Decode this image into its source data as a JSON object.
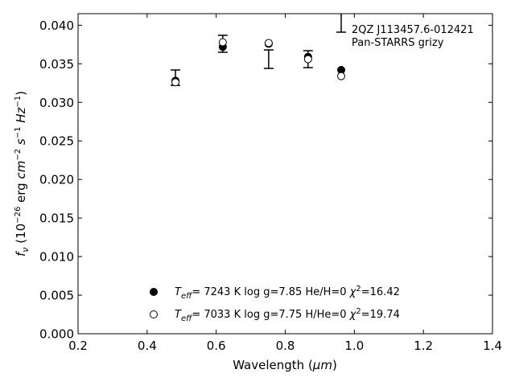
{
  "chart_data": {
    "type": "scatter",
    "annotation_lines": [
      "2QZ J113457.6-012421",
      "Pan-STARRS grizy"
    ],
    "xlabel_prefix": "Wavelength (",
    "xlabel_unit": "μm",
    "xlabel_suffix": ")",
    "ylabel": "f_ν (10^-26 erg cm^-2 s^-1 Hz^-1)",
    "xlim": [
      0.2,
      1.4
    ],
    "ylim": [
      0.0,
      0.0415
    ],
    "xticks": [
      0.2,
      0.4,
      0.6,
      0.8,
      1.0,
      1.2,
      1.4
    ],
    "xtick_labels": [
      "0.2",
      "0.4",
      "0.6",
      "0.8",
      "1.0",
      "1.2",
      "1.4"
    ],
    "yticks": [
      0.0,
      0.005,
      0.01,
      0.015,
      0.02,
      0.025,
      0.03,
      0.035,
      0.04
    ],
    "ytick_labels": [
      "0.000",
      "0.005",
      "0.010",
      "0.015",
      "0.020",
      "0.025",
      "0.030",
      "0.035",
      "0.040"
    ],
    "grid": false,
    "legend_placement": "lower-center",
    "observed": {
      "x": [
        0.482,
        0.619,
        0.752,
        0.866,
        0.962
      ],
      "y": [
        0.0332,
        0.0376,
        0.0356,
        0.0356,
        0.0413
      ],
      "yerr": [
        0.001,
        0.0011,
        0.0012,
        0.0011,
        0.0022
      ]
    },
    "series": [
      {
        "marker": "filled-circle",
        "label_teff": "7243 K",
        "label_logg": "log g=7.85",
        "label_comp": "He/H=0",
        "label_chi": "=16.42",
        "x": [
          0.482,
          0.619,
          0.752,
          0.866,
          0.962
        ],
        "y": [
          0.0328,
          0.0372,
          0.0376,
          0.0359,
          0.0342
        ]
      },
      {
        "marker": "open-circle",
        "label_teff": "7033 K",
        "label_logg": "log g=7.75",
        "label_comp": "H/He=0",
        "label_chi": "=19.74",
        "x": [
          0.482,
          0.619,
          0.752,
          0.866,
          0.962
        ],
        "y": [
          0.0326,
          0.0378,
          0.0377,
          0.0356,
          0.0334
        ]
      }
    ]
  },
  "colors": {
    "ink": "#000000",
    "background": "#ffffff"
  }
}
